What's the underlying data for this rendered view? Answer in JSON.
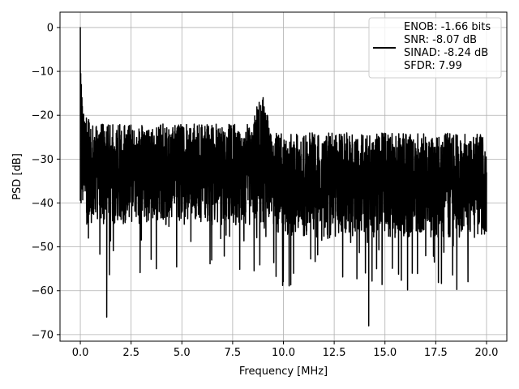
{
  "chart_data": {
    "type": "line",
    "title": "",
    "xlabel": "Frequency [MHz]",
    "ylabel": "PSD [dB]",
    "xlim": [
      -1.0,
      21.0
    ],
    "ylim": [
      -71.5,
      3.5
    ],
    "x_ticks": [
      0.0,
      2.5,
      5.0,
      7.5,
      10.0,
      12.5,
      15.0,
      17.5,
      20.0
    ],
    "x_tick_labels": [
      "0.0",
      "2.5",
      "5.0",
      "7.5",
      "10.0",
      "12.5",
      "15.0",
      "17.5",
      "20.0"
    ],
    "y_ticks": [
      0,
      -10,
      -20,
      -30,
      -40,
      -50,
      -60,
      -70
    ],
    "y_tick_labels": [
      "0",
      "−10",
      "−20",
      "−30",
      "−40",
      "−50",
      "−60",
      "−70"
    ],
    "grid": true,
    "legend_position": "upper-right",
    "legend_entries": [
      "ENOB: -1.66 bits",
      "SNR: -8.07 dB",
      "SINAD: -8.24 dB",
      "SFDR: 7.99"
    ],
    "line_color": "#000000",
    "series": [
      {
        "x": [
          0.0,
          0.02,
          0.05,
          0.08,
          0.1,
          0.12,
          0.15,
          0.18,
          0.2,
          0.25,
          0.3,
          0.35,
          0.4,
          0.5,
          0.6,
          0.8,
          1.0,
          1.3,
          1.6,
          2.0,
          2.5,
          3.0,
          3.5,
          4.0,
          4.5,
          5.0,
          5.5,
          6.0,
          6.5,
          7.0,
          7.5,
          8.0,
          8.5,
          8.8,
          9.0,
          9.2,
          9.5,
          10.0,
          10.5,
          11.0,
          11.5,
          12.0,
          12.5,
          13.0,
          13.5,
          14.0,
          14.2,
          14.5,
          15.0,
          15.5,
          16.0,
          16.5,
          17.0,
          17.5,
          18.0,
          18.5,
          19.0,
          19.5,
          20.0
        ],
        "y": [
          0,
          -10.5,
          -13,
          -16,
          -18,
          -20,
          -22,
          -24,
          -25,
          -30,
          -27,
          -31,
          -48,
          -29,
          -33,
          -31,
          -30,
          -66,
          -32,
          -31,
          -30,
          -29,
          -31,
          -30,
          -32,
          -31,
          -30,
          -31,
          -30,
          -31,
          -30,
          -31,
          -33,
          -25,
          -16,
          -20,
          -27,
          -31,
          -33,
          -32,
          -32,
          -31,
          -31,
          -32,
          -31,
          -32,
          -68,
          -33,
          -32,
          -32,
          -32,
          -32,
          -32,
          -32,
          -32,
          -32,
          -32,
          -32,
          -33
        ]
      }
    ]
  }
}
